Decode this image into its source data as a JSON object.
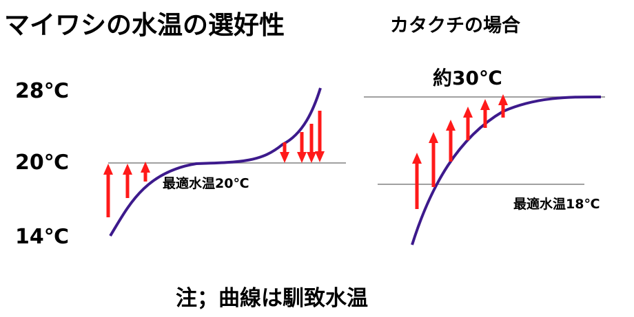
{
  "title_main": "マイワシの水温の選好性",
  "title_sub": "カタクチの場合",
  "temps": {
    "t28": "28℃",
    "t20": "20℃",
    "t14": "14℃"
  },
  "left_chart": {
    "optimum_label": "最適水温20℃"
  },
  "right_chart": {
    "peak_label": "約30℃",
    "optimum_label": "最適水温18℃"
  },
  "note": "注；曲線は馴致水温",
  "colors": {
    "curve": "#3d1a8c",
    "arrow": "#ff1a1a",
    "line": "#808080",
    "text": "#000000"
  }
}
